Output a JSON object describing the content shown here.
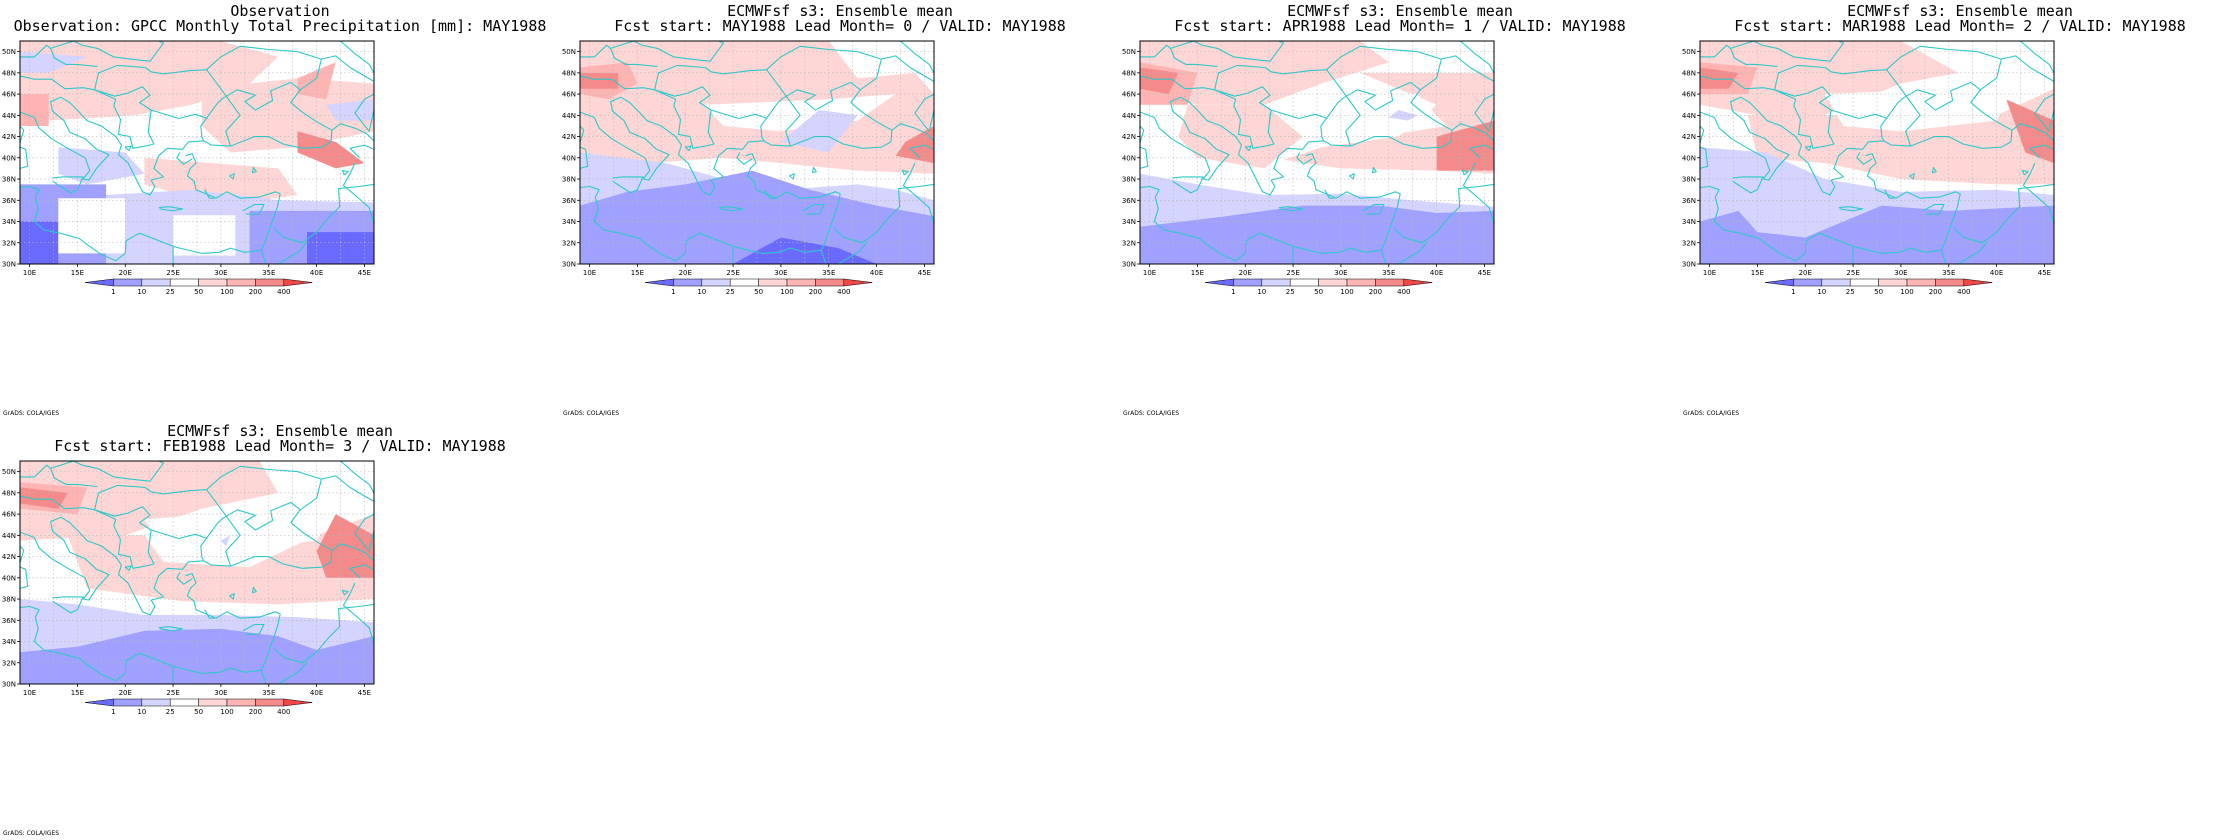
{
  "colors": {
    "ocean_frame": "#ffffff",
    "coastline": "#2ec8c8",
    "grid": "#b8b8b8",
    "levels": [
      "#6a6aff",
      "#a0a0ff",
      "#d4d4ff",
      "#ffffff",
      "#ffd6d6",
      "#ffb4b4",
      "#f58a8a",
      "#f04646"
    ]
  },
  "map": {
    "lon_ticks": [
      "10E",
      "15E",
      "20E",
      "25E",
      "30E",
      "35E",
      "40E",
      "45E"
    ],
    "lat_ticks": [
      "50N",
      "48N",
      "46N",
      "44N",
      "42N",
      "40N",
      "38N",
      "36N",
      "34N",
      "32N",
      "30N"
    ],
    "lon_range": [
      9,
      46
    ],
    "lat_range": [
      30,
      51
    ],
    "colorbar_labels": [
      "1",
      "10",
      "25",
      "50",
      "100",
      "200",
      "400"
    ],
    "credit": "GrADS: COLA/IGES"
  },
  "panels": [
    {
      "title_line1": "Observation",
      "title_line2": "Observation: GPCC Monthly Total Precipitation [mm]: MAY1988",
      "pattern": "obs"
    },
    {
      "title_line1": "ECMWFsf s3: Ensemble mean",
      "title_line2": "Fcst start: MAY1988  Lead Month= 0 / VALID: MAY1988",
      "pattern": "lead0"
    },
    {
      "title_line1": "ECMWFsf s3: Ensemble mean",
      "title_line2": "Fcst start: APR1988  Lead Month= 1 / VALID: MAY1988",
      "pattern": "lead1"
    },
    {
      "title_line1": "ECMWFsf s3: Ensemble mean",
      "title_line2": "Fcst start: MAR1988  Lead Month= 2 / VALID: MAY1988",
      "pattern": "lead2"
    },
    {
      "title_line1": "ECMWFsf s3: Ensemble mean",
      "title_line2": "Fcst start: FEB1988  Lead Month= 3 / VALID: MAY1988",
      "pattern": "lead3"
    }
  ]
}
